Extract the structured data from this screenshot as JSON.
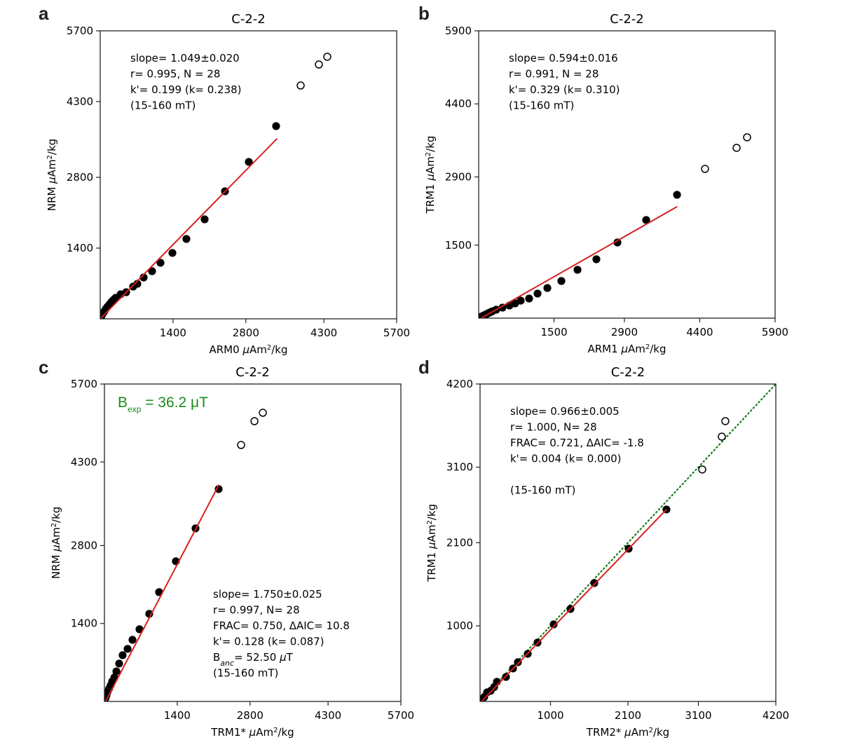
{
  "chart_data": [
    {
      "type": "scatter",
      "panel_letter": "a",
      "title": "C-2-2",
      "xlabel": "ARM0 μAm²/kg",
      "xlabel_parts": [
        "ARM0 ",
        "μ",
        "Am",
        "2",
        "/kg"
      ],
      "ylabel": "NRM μAm²/kg",
      "ylabel_parts": [
        "NRM ",
        "μ",
        "Am",
        "2",
        "/kg"
      ],
      "xlim": [
        0,
        5700
      ],
      "ylim": [
        0,
        5700
      ],
      "xticks": [
        1400,
        2800,
        4300,
        5700
      ],
      "yticks": [
        1400,
        2800,
        4300,
        5700
      ],
      "grid": false,
      "annotation_position": "top-left",
      "annotation": [
        "slope= 1.049±0.020",
        "r= 0.995, N = 28",
        "k'= 0.199 (k= 0.238)",
        "(15-160 mT)"
      ],
      "fit_line": {
        "color": "#d62020",
        "x": [
          0,
          3400
        ],
        "y": [
          0,
          3567
        ]
      },
      "series": [
        {
          "name": "included",
          "marker": "filled-circle",
          "color": "#000000",
          "x": [
            0,
            20,
            40,
            60,
            80,
            110,
            140,
            180,
            220,
            260,
            296,
            391,
            499,
            633,
            714,
            835,
            997,
            1159,
            1388,
            1657,
            2008,
            2399,
            2857,
            3382
          ],
          "y": [
            0,
            40,
            90,
            120,
            150,
            200,
            240,
            290,
            340,
            380,
            416,
            485,
            527,
            638,
            693,
            818,
            943,
            1109,
            1304,
            1581,
            1969,
            2524,
            3106,
            3814
          ]
        },
        {
          "name": "excluded",
          "marker": "open-circle",
          "color": "#000000",
          "x": [
            3854,
            4204,
            4366
          ],
          "y": [
            4618,
            5034,
            5187
          ]
        }
      ]
    },
    {
      "type": "scatter",
      "panel_letter": "b",
      "title": "C-2-2",
      "xlabel": "ARM1 μAm²/kg",
      "xlabel_parts": [
        "ARM1 ",
        "μ",
        "Am",
        "2",
        "/kg"
      ],
      "ylabel": "TRM1 μAm²/kg",
      "ylabel_parts": [
        "TRM1 ",
        "μ",
        "Am",
        "2",
        "/kg"
      ],
      "xlim": [
        0,
        5900
      ],
      "ylim": [
        0,
        5900
      ],
      "xticks": [
        1500,
        2900,
        4400,
        5900
      ],
      "yticks": [
        1500,
        2900,
        4400,
        5900
      ],
      "grid": false,
      "annotation_position": "top-left",
      "annotation": [
        "slope= 0.594±0.016",
        "r= 0.991, N = 28",
        "k'= 0.329 (k= 0.310)",
        "(15-160 mT)"
      ],
      "fit_line": {
        "color": "#d62020",
        "x": [
          0,
          3950
        ],
        "y": [
          -30,
          2290
        ]
      },
      "series": [
        {
          "name": "included",
          "marker": "filled-circle",
          "color": "#000000",
          "x": [
            0,
            30,
            60,
            100,
            140,
            180,
            220,
            270,
            349,
            474,
            614,
            725,
            837,
            1004,
            1172,
            1367,
            1646,
            1967,
            2343,
            2762,
            3334,
            3948
          ],
          "y": [
            0,
            20,
            35,
            55,
            75,
            95,
            115,
            140,
            173,
            216,
            259,
            302,
            360,
            403,
            504,
            619,
            763,
            993,
            1209,
            1554,
            2015,
            2533
          ]
        },
        {
          "name": "excluded",
          "marker": "open-circle",
          "color": "#000000",
          "x": [
            4505,
            5133,
            5342
          ],
          "y": [
            3065,
            3497,
            3713
          ]
        }
      ]
    },
    {
      "type": "scatter",
      "panel_letter": "c",
      "title": "C-2-2",
      "xlabel": "TRM1* μAm²/kg",
      "xlabel_parts": [
        "TRM1* ",
        "μ",
        "Am",
        "2",
        "/kg"
      ],
      "ylabel": "NRM μAm²/kg",
      "ylabel_parts": [
        "NRM ",
        "μ",
        "Am",
        "2",
        "/kg"
      ],
      "xlim": [
        0,
        5700
      ],
      "ylim": [
        0,
        5700
      ],
      "xticks": [
        1400,
        2800,
        4300,
        5700
      ],
      "yticks": [
        1400,
        2800,
        4300,
        5700
      ],
      "grid": false,
      "highlight": {
        "prefix": "B",
        "subscript": "exp",
        "suffix": " = 36.2 μT",
        "color": "#1a8a1a",
        "position": "top-left"
      },
      "annotation_position": "bottom-right",
      "annotation": [
        "slope= 1.750±0.025",
        "r= 0.997, N= 28",
        "FRAC= 0.750, ΔAIC=  10.8",
        "k'= 0.128 (k= 0.087)",
        "B_anc=   52.50 μT",
        "(15-160 mT)"
      ],
      "annotation_banc": {
        "prefix": "B",
        "subscript": "anc",
        "suffix": "=   52.50 ",
        "mu": "μ",
        "unit": "T"
      },
      "fit_line": {
        "color": "#d62020",
        "x": [
          0,
          2200
        ],
        "y": [
          -40,
          3890
        ]
      },
      "series": [
        {
          "name": "included",
          "marker": "filled-circle",
          "color": "#000000",
          "x": [
            0,
            20,
            40,
            60,
            90,
            120,
            150,
            190,
            230,
            283,
            350,
            445,
            539,
            674,
            862,
            1051,
            1374,
            1752,
            2196
          ],
          "y": [
            0,
            60,
            110,
            170,
            230,
            290,
            360,
            430,
            540,
            680,
            830,
            944,
            1107,
            1296,
            1573,
            1963,
            2517,
            3108,
            3813
          ]
        },
        {
          "name": "excluded",
          "marker": "open-circle",
          "color": "#000000",
          "x": [
            2628,
            2884,
            3046
          ],
          "y": [
            4605,
            5033,
            5184
          ]
        }
      ]
    },
    {
      "type": "scatter",
      "panel_letter": "d",
      "title": "C-2-2",
      "xlabel": "TRM2* μAm²/kg",
      "xlabel_parts": [
        "TRM2* ",
        "μ",
        "Am",
        "2",
        "/kg"
      ],
      "ylabel": "TRM1 μAm²/kg",
      "ylabel_parts": [
        "TRM1 ",
        "μ",
        "Am",
        "2",
        "/kg"
      ],
      "xlim": [
        0,
        4200
      ],
      "ylim": [
        0,
        4200
      ],
      "xticks": [
        1000,
        2100,
        3100,
        4200
      ],
      "yticks": [
        1000,
        2100,
        3100,
        4200
      ],
      "grid": false,
      "annotation_position": "top-left",
      "annotation": [
        "slope= 0.966±0.005",
        "r= 1.000, N= 28",
        "FRAC= 0.721, ΔAIC=  -1.8",
        "k'= 0.004 (k= 0.000)",
        "",
        "(15-160 mT)"
      ],
      "fit_line": {
        "color": "#d62020",
        "x": [
          0,
          2647
        ],
        "y": [
          -20,
          2540
        ]
      },
      "reference_line": {
        "color": "#1a7a1a",
        "style": "dotted",
        "x": [
          0,
          4200
        ],
        "y": [
          0,
          4200
        ]
      },
      "series": [
        {
          "name": "included",
          "marker": "filled-circle",
          "color": "#000000",
          "x": [
            0,
            30,
            60,
            100,
            150,
            200,
            239,
            368,
            468,
            537,
            677,
            816,
            1045,
            1284,
            1622,
            2110,
            2647
          ],
          "y": [
            0,
            25,
            60,
            121,
            140,
            190,
            260,
            324,
            436,
            519,
            630,
            779,
            1020,
            1224,
            1567,
            2021,
            2540
          ]
        },
        {
          "name": "excluded",
          "marker": "open-circle",
          "color": "#000000",
          "x": [
            3155,
            3433,
            3483
          ],
          "y": [
            3069,
            3504,
            3709
          ]
        }
      ]
    }
  ]
}
